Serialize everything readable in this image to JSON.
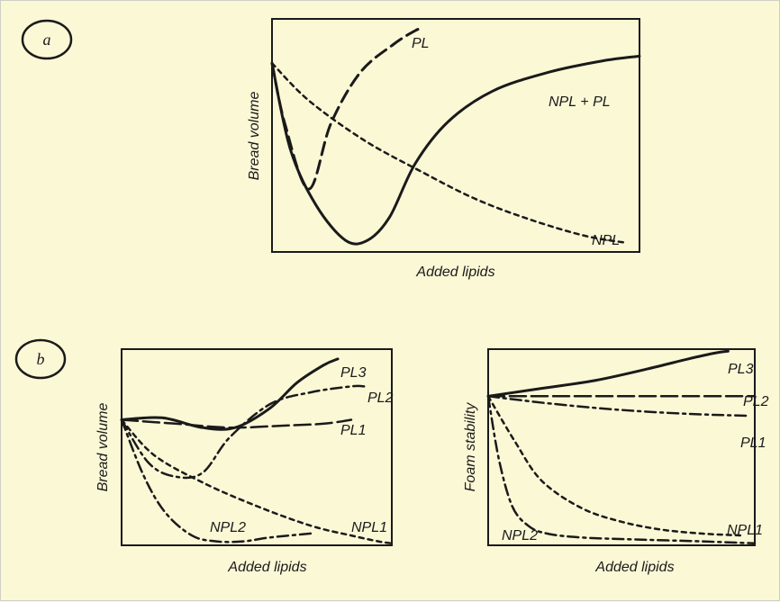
{
  "chart_data": [
    {
      "type": "line",
      "panel": "a",
      "xlabel": "Added lipids",
      "ylabel": "Bread volume",
      "xlim": [
        0,
        10
      ],
      "ylim": [
        0,
        10
      ],
      "ticks": "none",
      "series": [
        {
          "name": "PL",
          "style": "dashed",
          "x": [
            0,
            0.35,
            1.0,
            1.6,
            2.4,
            3.3,
            3.9,
            4.1
          ],
          "y": [
            8.1,
            5.5,
            2.7,
            5.5,
            7.7,
            8.9,
            9.5,
            9.6
          ]
        },
        {
          "name": "NPL + PL",
          "style": "solid",
          "x": [
            0,
            0.5,
            1.2,
            2.0,
            2.6,
            3.2,
            3.9,
            4.8,
            6.0,
            7.5,
            9.0,
            10.0
          ],
          "y": [
            8.1,
            4.4,
            2.0,
            0.5,
            0.5,
            1.5,
            3.8,
            5.6,
            6.9,
            7.7,
            8.2,
            8.4
          ]
        },
        {
          "name": "NPL",
          "style": "dotted",
          "x": [
            0,
            1.0,
            2.5,
            4.0,
            5.5,
            7.0,
            8.5,
            9.6
          ],
          "y": [
            8.1,
            6.5,
            4.8,
            3.5,
            2.3,
            1.4,
            0.7,
            0.4
          ]
        }
      ]
    },
    {
      "type": "line",
      "panel": "b-left",
      "xlabel": "Added lipids",
      "ylabel": "Bread volume",
      "xlim": [
        0,
        10
      ],
      "ylim": [
        0,
        10
      ],
      "ticks": "none",
      "series": [
        {
          "name": "PL3",
          "style": "solid",
          "x": [
            0,
            1.5,
            3.0,
            4.2,
            5.5,
            6.5,
            7.5,
            8.0
          ],
          "y": [
            6.4,
            6.5,
            6.0,
            6.0,
            7.0,
            8.3,
            9.2,
            9.5
          ]
        },
        {
          "name": "PL2",
          "style": "dash-dot",
          "x": [
            0,
            1.0,
            2.0,
            3.0,
            4.0,
            5.5,
            7.0,
            8.5,
            9.0
          ],
          "y": [
            6.4,
            4.2,
            3.5,
            3.7,
            5.5,
            7.2,
            7.8,
            8.1,
            8.1
          ]
        },
        {
          "name": "PL1",
          "style": "long-dash",
          "x": [
            0,
            2.0,
            4.0,
            6.0,
            7.5,
            8.5
          ],
          "y": [
            6.4,
            6.2,
            6.0,
            6.1,
            6.2,
            6.4
          ]
        },
        {
          "name": "NPL2",
          "style": "dash-dot",
          "x": [
            0,
            0.8,
            1.6,
            2.6,
            3.5,
            4.5,
            5.5,
            7.0
          ],
          "y": [
            6.4,
            3.6,
            1.7,
            0.5,
            0.2,
            0.2,
            0.4,
            0.6
          ]
        },
        {
          "name": "NPL1",
          "style": "dotted",
          "x": [
            0,
            1.2,
            3.0,
            5.0,
            7.0,
            8.5,
            9.5,
            10.0
          ],
          "y": [
            6.4,
            4.6,
            3.2,
            2.0,
            1.0,
            0.5,
            0.2,
            0.1
          ]
        }
      ]
    },
    {
      "type": "line",
      "panel": "b-right",
      "xlabel": "Added lipids",
      "ylabel": "Foam stability",
      "xlim": [
        0,
        10
      ],
      "ylim": [
        0,
        10
      ],
      "ticks": "none",
      "series": [
        {
          "name": "PL3",
          "style": "solid",
          "x": [
            0,
            2.0,
            4.0,
            6.0,
            7.5,
            8.5,
            9.0
          ],
          "y": [
            7.6,
            8.0,
            8.4,
            9.0,
            9.5,
            9.8,
            9.9
          ]
        },
        {
          "name": "PL2",
          "style": "long-dash",
          "x": [
            0,
            3.0,
            6.0,
            8.5,
            10.0
          ],
          "y": [
            7.6,
            7.6,
            7.6,
            7.6,
            7.6
          ]
        },
        {
          "name": "PL1",
          "style": "dash-dot",
          "x": [
            0,
            2.5,
            5.0,
            7.5,
            9.8
          ],
          "y": [
            7.6,
            7.2,
            6.9,
            6.7,
            6.6
          ]
        },
        {
          "name": "NPL2",
          "style": "dash-dot",
          "x": [
            0,
            0.4,
            0.9,
            1.5,
            2.2,
            3.5,
            5.5,
            8.0,
            10.0
          ],
          "y": [
            7.6,
            4.4,
            2.0,
            1.0,
            0.6,
            0.4,
            0.3,
            0.2,
            0.1
          ]
        },
        {
          "name": "NPL1",
          "style": "dotted",
          "x": [
            0,
            1.0,
            2.0,
            3.5,
            5.0,
            6.5,
            8.0,
            9.5
          ],
          "y": [
            7.6,
            5.3,
            3.3,
            1.9,
            1.2,
            0.8,
            0.6,
            0.5
          ]
        }
      ]
    }
  ],
  "panel_labels": [
    "a",
    "b"
  ]
}
